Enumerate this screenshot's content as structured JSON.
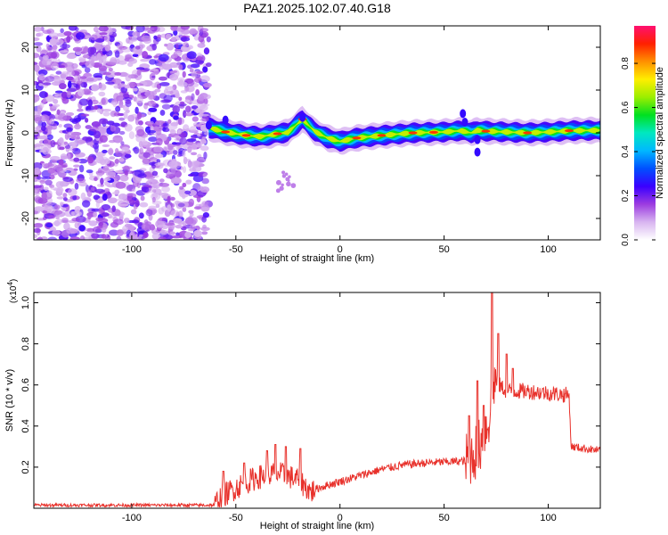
{
  "title": "PAZ1.2025.102.07.40.G18",
  "chart_data": [
    {
      "type": "heatmap",
      "xlabel": "Height of straight line (km)",
      "ylabel": "Frequency (Hz)",
      "xlim": [
        -147,
        125
      ],
      "ylim": [
        -25,
        25
      ],
      "xticks": [
        -100,
        -50,
        0,
        50,
        100
      ],
      "yticks": [
        -20,
        -10,
        0,
        10,
        20
      ],
      "colorbar": {
        "label": "Normalized spectral amplitude",
        "range": [
          0,
          0.97
        ],
        "ticks": [
          0.0,
          0.2,
          0.4,
          0.6,
          0.8
        ],
        "tick_labels": [
          "0.0",
          "0.2",
          "0.4",
          "0.6",
          "0.8"
        ],
        "colors": [
          "#ffffff",
          "#d8b4f0",
          "#9c3ce0",
          "#3a00ff",
          "#0050ff",
          "#00b8ff",
          "#00e8c0",
          "#00e020",
          "#9cee00",
          "#ffee00",
          "#ff9000",
          "#ff2000",
          "#ff1070"
        ]
      },
      "noise_region_x": [
        -147,
        -63
      ],
      "signal_ridge": [
        {
          "x": -63,
          "f": 1.2
        },
        {
          "x": -55,
          "f": 0.2
        },
        {
          "x": -45,
          "f": -0.6
        },
        {
          "x": -38,
          "f": -0.9
        },
        {
          "x": -30,
          "f": -0.2
        },
        {
          "x": -25,
          "f": 0.1
        },
        {
          "x": -18,
          "f": 3.2
        },
        {
          "x": -12,
          "f": 0.3
        },
        {
          "x": -6,
          "f": -1.2
        },
        {
          "x": 0,
          "f": -2.0
        },
        {
          "x": 8,
          "f": -1.2
        },
        {
          "x": 20,
          "f": -0.6
        },
        {
          "x": 35,
          "f": 0.0
        },
        {
          "x": 50,
          "f": 0.2
        },
        {
          "x": 58,
          "f": 0.5
        },
        {
          "x": 63,
          "f": 0.0
        },
        {
          "x": 66,
          "f": 0.6
        },
        {
          "x": 70,
          "f": 0.4
        },
        {
          "x": 80,
          "f": 0.2
        },
        {
          "x": 90,
          "f": 0.0
        },
        {
          "x": 100,
          "f": 0.2
        },
        {
          "x": 110,
          "f": 0.5
        },
        {
          "x": 125,
          "f": 0.6
        }
      ],
      "peaks_x": [
        -55,
        -45,
        -30,
        -18,
        8,
        20,
        35,
        45,
        70,
        90,
        110
      ]
    },
    {
      "type": "line",
      "xlabel": "Height of straight line (km)",
      "ylabel": "SNR (10 * v/v)",
      "y_scale_label": "(x10",
      "y_scale_exp": "4",
      "y_scale_close": ")",
      "xlim": [
        -147,
        125
      ],
      "ylim": [
        0,
        1.05
      ],
      "xticks": [
        -100,
        -50,
        0,
        50,
        100
      ],
      "yticks": [
        0.2,
        0.4,
        0.6,
        0.8,
        1.0
      ],
      "color": "#e8312b",
      "series_outline": [
        {
          "x": -147,
          "y": 0.015
        },
        {
          "x": -60,
          "y": 0.015
        },
        {
          "x": -58,
          "y": 0.05
        },
        {
          "x": -50,
          "y": 0.1
        },
        {
          "x": -40,
          "y": 0.15
        },
        {
          "x": -30,
          "y": 0.17
        },
        {
          "x": -20,
          "y": 0.14
        },
        {
          "x": -14,
          "y": 0.08
        },
        {
          "x": -10,
          "y": 0.1
        },
        {
          "x": 0,
          "y": 0.13
        },
        {
          "x": 10,
          "y": 0.16
        },
        {
          "x": 20,
          "y": 0.19
        },
        {
          "x": 30,
          "y": 0.21
        },
        {
          "x": 40,
          "y": 0.22
        },
        {
          "x": 50,
          "y": 0.225
        },
        {
          "x": 60,
          "y": 0.23
        },
        {
          "x": 63,
          "y": 0.25
        },
        {
          "x": 67,
          "y": 0.3
        },
        {
          "x": 72,
          "y": 0.45
        },
        {
          "x": 74,
          "y": 0.62
        },
        {
          "x": 80,
          "y": 0.57
        },
        {
          "x": 90,
          "y": 0.57
        },
        {
          "x": 100,
          "y": 0.56
        },
        {
          "x": 110,
          "y": 0.55
        },
        {
          "x": 111,
          "y": 0.3
        },
        {
          "x": 125,
          "y": 0.28
        }
      ],
      "spikes": [
        {
          "x": -56,
          "y": 0.18
        },
        {
          "x": -46,
          "y": 0.22
        },
        {
          "x": -35,
          "y": 0.28
        },
        {
          "x": -31,
          "y": 0.31
        },
        {
          "x": -26,
          "y": 0.3
        },
        {
          "x": -19,
          "y": 0.29
        },
        {
          "x": 62,
          "y": 0.45
        },
        {
          "x": 66,
          "y": 0.62
        },
        {
          "x": 69,
          "y": 0.5
        },
        {
          "x": 73,
          "y": 1.05
        },
        {
          "x": 76,
          "y": 0.85
        },
        {
          "x": 80,
          "y": 0.75
        },
        {
          "x": 83,
          "y": 0.68
        }
      ]
    }
  ]
}
